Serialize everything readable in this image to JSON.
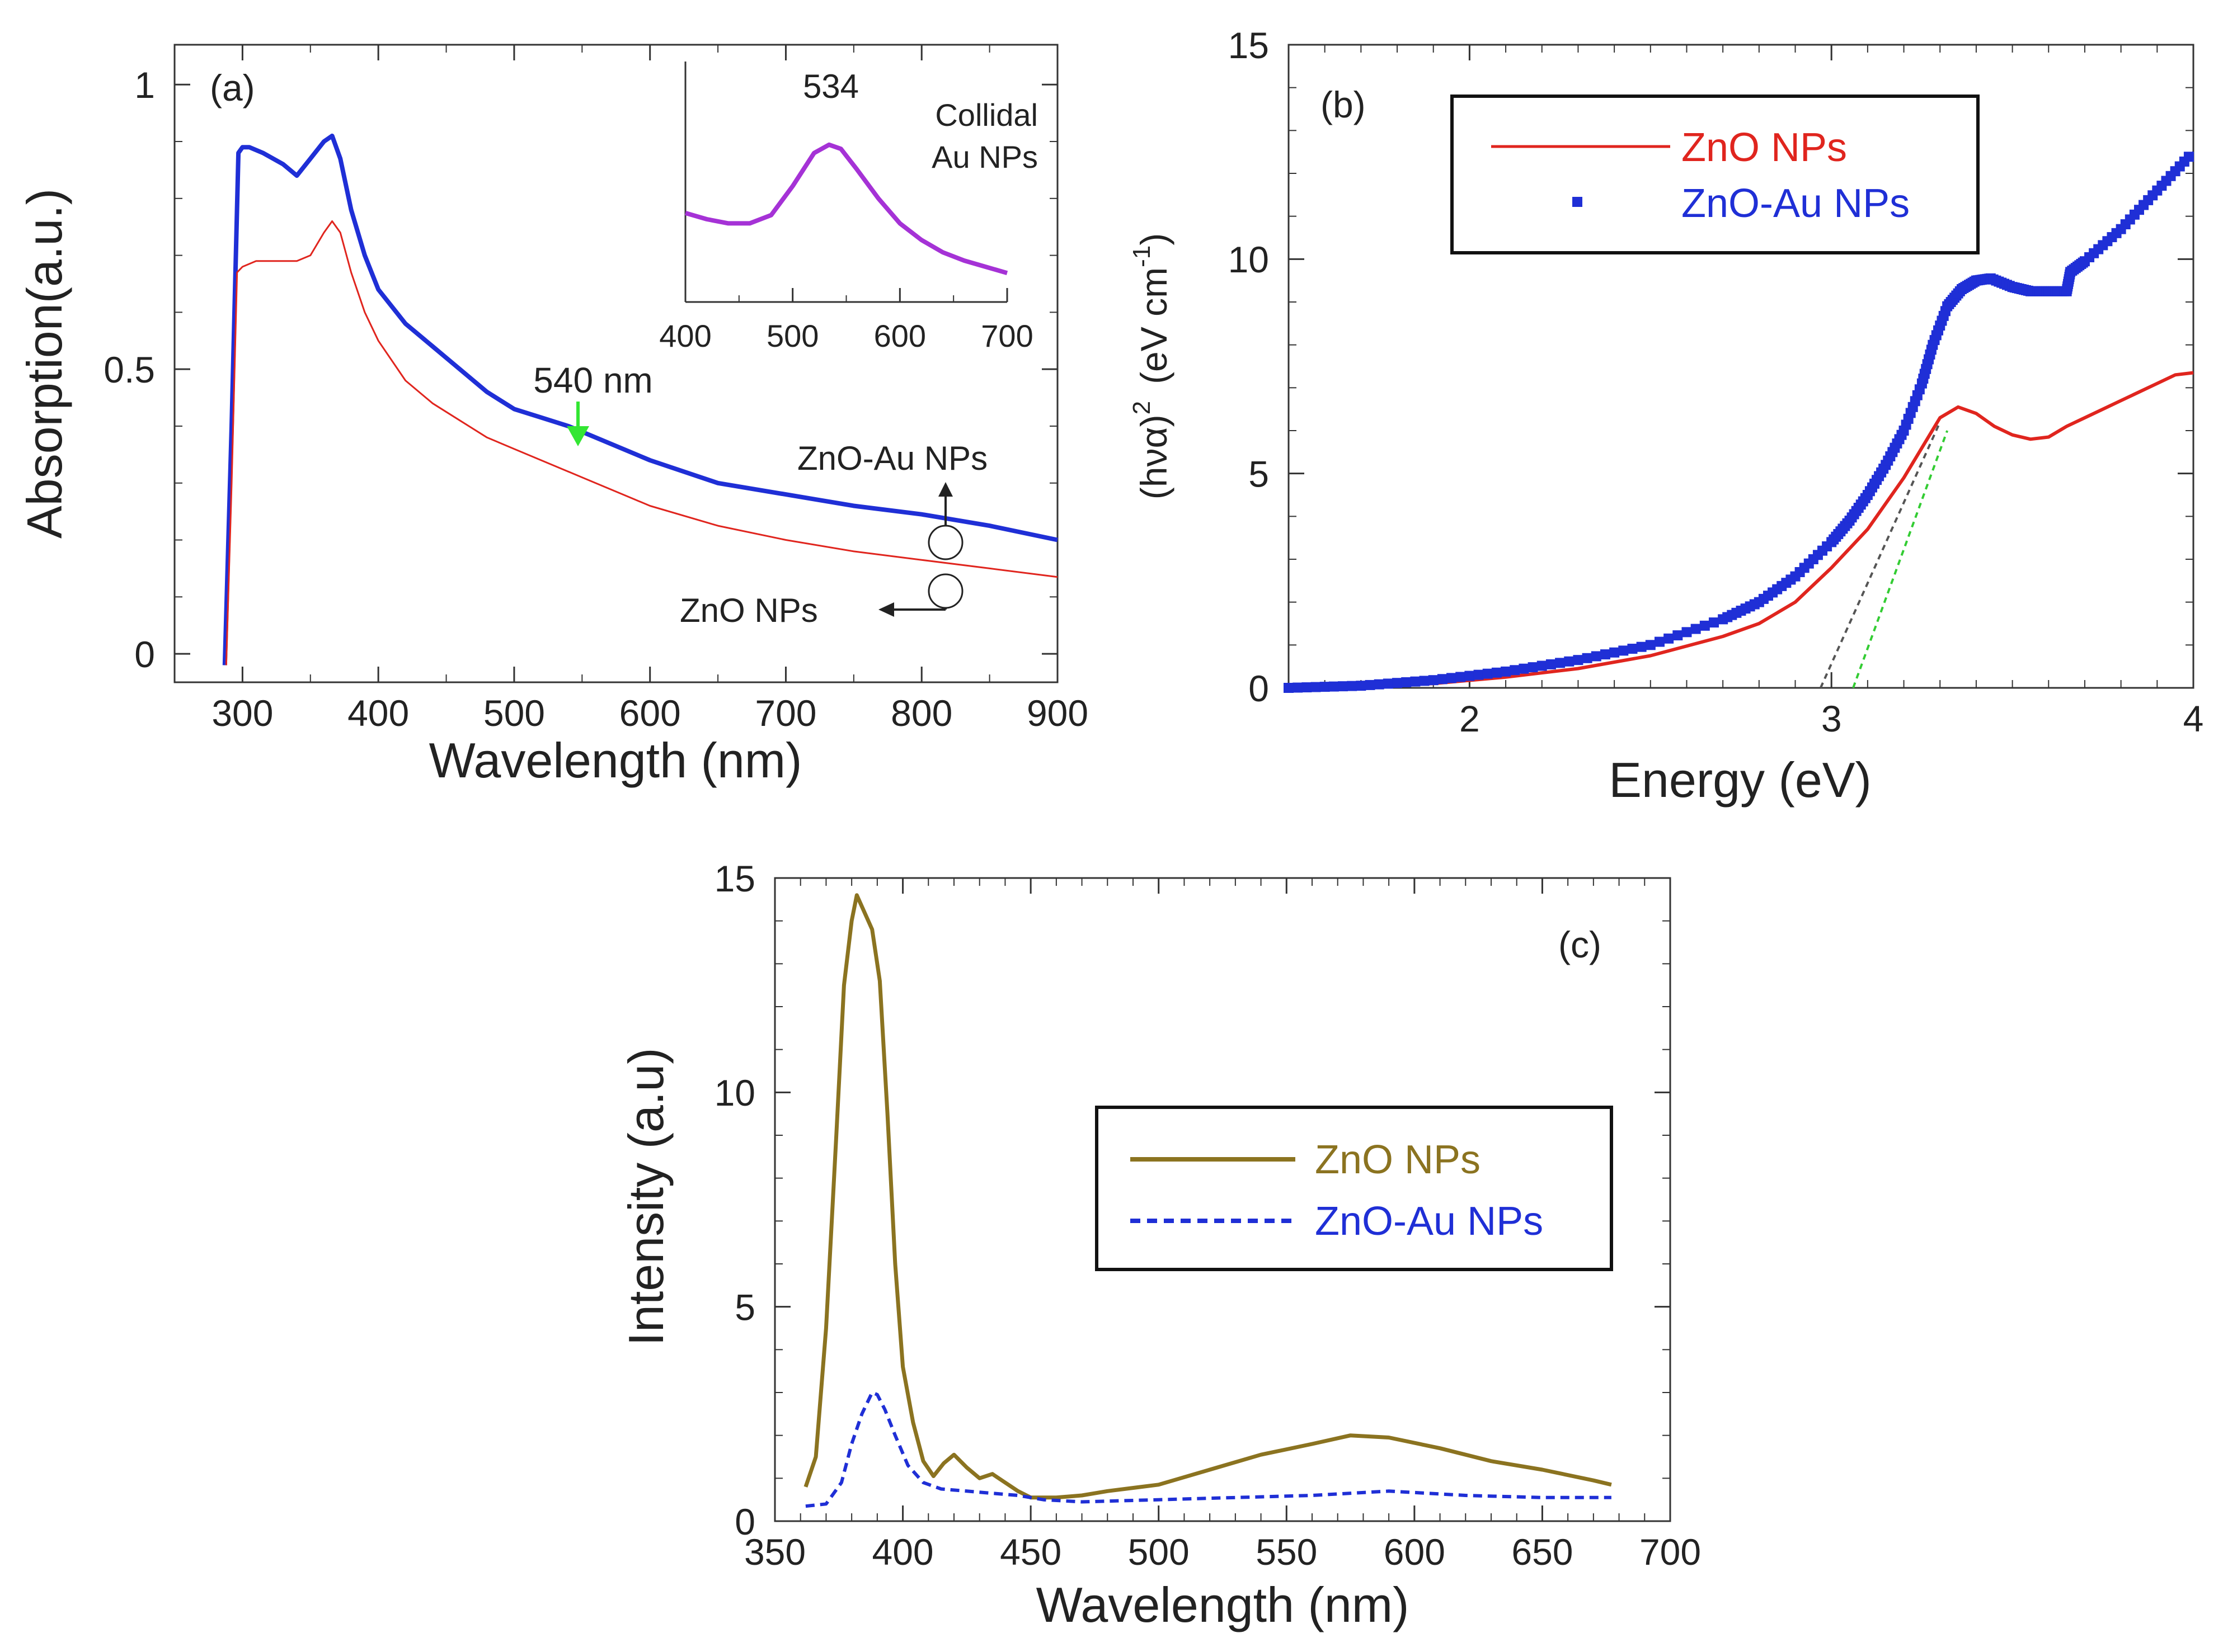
{
  "chart_data": [
    {
      "id": "a",
      "type": "line",
      "panel_label": "(a)",
      "xlabel": "Wavelength (nm)",
      "ylabel": "Absorption(a.u.)",
      "xlim": [
        250,
        900
      ],
      "ylim": [
        -0.05,
        1.07
      ],
      "xticks": [
        300,
        400,
        500,
        600,
        700,
        800,
        900
      ],
      "yticks": [
        0,
        0.5,
        1
      ],
      "ytick_labels": [
        "0",
        "0.5",
        "1"
      ],
      "annotations": {
        "peak_label": "540 nm",
        "zno_au_label": "ZnO-Au NPs",
        "zno_label": "ZnO NPs"
      },
      "series": [
        {
          "name": "ZnO-Au NPs",
          "color": "#1f2fd6",
          "x": [
            287,
            292,
            297,
            300,
            305,
            315,
            330,
            340,
            350,
            360,
            366,
            372,
            380,
            390,
            400,
            420,
            440,
            460,
            480,
            500,
            520,
            540,
            560,
            600,
            650,
            700,
            750,
            800,
            850,
            900
          ],
          "y": [
            -0.02,
            0.4,
            0.88,
            0.89,
            0.89,
            0.88,
            0.86,
            0.84,
            0.87,
            0.9,
            0.91,
            0.87,
            0.78,
            0.7,
            0.64,
            0.58,
            0.54,
            0.5,
            0.46,
            0.43,
            0.415,
            0.4,
            0.38,
            0.34,
            0.3,
            0.28,
            0.26,
            0.245,
            0.225,
            0.2
          ]
        },
        {
          "name": "ZnO NPs",
          "color": "#e0251e",
          "x": [
            288,
            292,
            296,
            300,
            310,
            320,
            330,
            340,
            350,
            360,
            366,
            372,
            380,
            390,
            400,
            420,
            440,
            460,
            480,
            500,
            550,
            600,
            650,
            700,
            750,
            800,
            850,
            900
          ],
          "y": [
            -0.02,
            0.3,
            0.67,
            0.68,
            0.69,
            0.69,
            0.69,
            0.69,
            0.7,
            0.74,
            0.76,
            0.74,
            0.67,
            0.6,
            0.55,
            0.48,
            0.44,
            0.41,
            0.38,
            0.36,
            0.31,
            0.26,
            0.225,
            0.2,
            0.18,
            0.165,
            0.15,
            0.135
          ]
        }
      ]
    },
    {
      "id": "a-inset",
      "type": "line",
      "title": "Collidal Au NPs",
      "title_lines": [
        "Collidal",
        "Au NPs"
      ],
      "peak_label": "534",
      "xlim": [
        400,
        700
      ],
      "xticks": [
        400,
        500,
        600,
        700
      ],
      "ylim": [
        0,
        1
      ],
      "series": [
        {
          "name": "Collidal Au NPs",
          "color": "#a532d6",
          "x": [
            400,
            420,
            440,
            460,
            480,
            500,
            520,
            534,
            545,
            560,
            580,
            600,
            620,
            640,
            660,
            680,
            700
          ],
          "y": [
            0.43,
            0.4,
            0.38,
            0.38,
            0.42,
            0.56,
            0.72,
            0.76,
            0.74,
            0.64,
            0.5,
            0.38,
            0.3,
            0.24,
            0.2,
            0.17,
            0.14
          ]
        }
      ]
    },
    {
      "id": "b",
      "type": "line",
      "panel_label": "(b)",
      "xlabel": "Energy (eV)",
      "ylabel": "(hνα)² (eV cm⁻¹)",
      "ylabel_base": "(hνα)",
      "ylabel_sup": "2",
      "ylabel_unit": "(eV cm",
      "ylabel_unit_sup": "-1",
      "ylabel_close": ")",
      "xlim": [
        1.5,
        4
      ],
      "ylim": [
        0,
        15
      ],
      "xticks": [
        2,
        3,
        4
      ],
      "yticks": [
        0,
        5,
        10,
        15
      ],
      "legend": [
        "ZnO NPs",
        "ZnO-Au NPs"
      ],
      "series": [
        {
          "name": "ZnO NPs",
          "color": "#e0251e",
          "x": [
            1.5,
            1.7,
            1.9,
            2.1,
            2.3,
            2.5,
            2.7,
            2.8,
            2.9,
            3.0,
            3.1,
            3.2,
            3.25,
            3.3,
            3.35,
            3.4,
            3.45,
            3.5,
            3.55,
            3.6,
            3.65,
            3.7,
            3.8,
            3.9,
            3.95,
            4.0
          ],
          "y": [
            0,
            0.03,
            0.1,
            0.25,
            0.45,
            0.75,
            1.2,
            1.5,
            2.0,
            2.8,
            3.7,
            4.9,
            5.6,
            6.3,
            6.55,
            6.4,
            6.1,
            5.9,
            5.8,
            5.85,
            6.1,
            6.3,
            6.7,
            7.1,
            7.3,
            7.35
          ]
        },
        {
          "name": "ZnO-Au NPs",
          "color": "#1f2fd6",
          "marker": "square",
          "x": [
            1.5,
            1.7,
            1.9,
            2.1,
            2.3,
            2.5,
            2.7,
            2.8,
            2.9,
            3.0,
            3.05,
            3.1,
            3.15,
            3.2,
            3.25,
            3.28,
            3.32,
            3.36,
            3.4,
            3.44,
            3.5,
            3.55,
            3.6,
            3.65,
            3.66,
            3.7,
            3.8,
            3.9,
            4.0
          ],
          "y": [
            0,
            0.05,
            0.18,
            0.38,
            0.65,
            1.0,
            1.6,
            2.0,
            2.6,
            3.4,
            3.9,
            4.5,
            5.2,
            6.0,
            7.1,
            8.0,
            8.9,
            9.3,
            9.5,
            9.55,
            9.35,
            9.25,
            9.25,
            9.25,
            9.7,
            9.95,
            10.7,
            11.6,
            12.5
          ]
        }
      ],
      "tangent_lines": [
        {
          "color": "#555555",
          "x": [
            2.97,
            3.3
          ],
          "y": [
            0,
            6.2
          ]
        },
        {
          "color": "#33cc33",
          "x": [
            3.06,
            3.32
          ],
          "y": [
            0,
            6.0
          ]
        }
      ]
    },
    {
      "id": "c",
      "type": "line",
      "panel_label": "(c)",
      "xlabel": "Wavelength (nm)",
      "ylabel": "Intensity (a.u)",
      "xlim": [
        350,
        700
      ],
      "ylim": [
        0,
        15
      ],
      "xticks": [
        350,
        400,
        450,
        500,
        550,
        600,
        650,
        700
      ],
      "yticks": [
        0,
        5,
        10,
        15
      ],
      "legend": [
        "ZnO NPs",
        "ZnO-Au NPs"
      ],
      "series": [
        {
          "name": "ZnO NPs",
          "color": "#8b7320",
          "x": [
            362,
            366,
            370,
            374,
            377,
            380,
            382,
            385,
            388,
            391,
            394,
            397,
            400,
            404,
            408,
            412,
            416,
            420,
            425,
            430,
            435,
            440,
            445,
            450,
            460,
            470,
            480,
            500,
            520,
            540,
            560,
            575,
            590,
            610,
            630,
            650,
            670,
            677
          ],
          "y": [
            0.8,
            1.5,
            4.5,
            9,
            12.5,
            14,
            14.6,
            14.2,
            13.8,
            12.6,
            9.5,
            6.0,
            3.6,
            2.3,
            1.4,
            1.05,
            1.35,
            1.55,
            1.25,
            1.0,
            1.1,
            0.9,
            0.7,
            0.55,
            0.55,
            0.6,
            0.7,
            0.85,
            1.2,
            1.55,
            1.8,
            2.0,
            1.95,
            1.7,
            1.4,
            1.2,
            0.95,
            0.85
          ]
        },
        {
          "name": "ZnO-Au NPs",
          "color": "#1f2fd6",
          "dash": "dashed",
          "x": [
            362,
            370,
            376,
            380,
            384,
            388,
            390,
            393,
            397,
            402,
            408,
            415,
            425,
            435,
            445,
            455,
            470,
            500,
            530,
            560,
            590,
            620,
            650,
            677
          ],
          "y": [
            0.35,
            0.4,
            0.9,
            1.8,
            2.5,
            3.0,
            2.95,
            2.6,
            2.0,
            1.3,
            0.9,
            0.75,
            0.7,
            0.65,
            0.6,
            0.5,
            0.45,
            0.5,
            0.55,
            0.6,
            0.7,
            0.6,
            0.55,
            0.55
          ]
        }
      ]
    }
  ]
}
